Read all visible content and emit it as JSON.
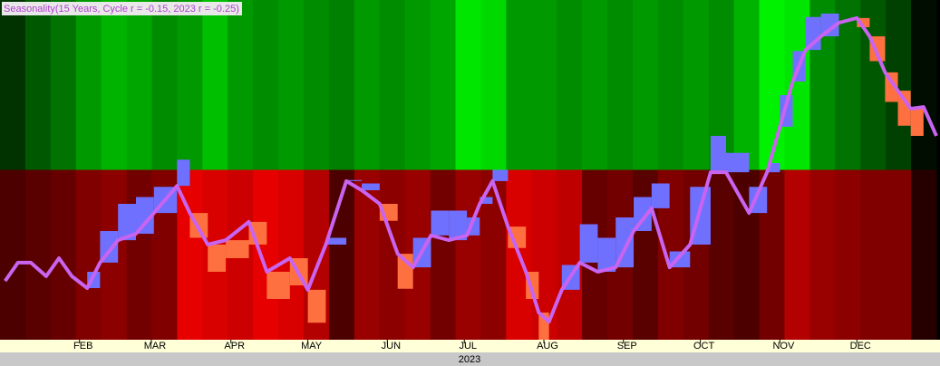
{
  "chart_data": {
    "type": "line",
    "title": "Seasonality(15 Years, Cycle r = -0.15, 2023 r = -0.25)",
    "xlabel": "2023",
    "xlim": [
      0,
      365
    ],
    "ylim": [
      0,
      100
    ],
    "xticks": [
      {
        "value": 31,
        "label": "FEB"
      },
      {
        "value": 59,
        "label": "MAR"
      },
      {
        "value": 90,
        "label": "APR"
      },
      {
        "value": 120,
        "label": "MAY"
      },
      {
        "value": 151,
        "label": "JUN"
      },
      {
        "value": 181,
        "label": "JUL"
      },
      {
        "value": 212,
        "label": "AUG"
      },
      {
        "value": 243,
        "label": "SEP"
      },
      {
        "value": 273,
        "label": "OCT"
      },
      {
        "value": 304,
        "label": "NOV"
      },
      {
        "value": 334,
        "label": "DEC"
      }
    ],
    "x": [
      2,
      7,
      12,
      18,
      23,
      28,
      34,
      39,
      46,
      53,
      60,
      69,
      74,
      81,
      88,
      97,
      104,
      113,
      120,
      127,
      135,
      141,
      148,
      155,
      161,
      168,
      175,
      182,
      187,
      192,
      198,
      205,
      210,
      214,
      219,
      226,
      233,
      240,
      247,
      254,
      261,
      269,
      277,
      283,
      292,
      299,
      304,
      309,
      314,
      320,
      327,
      334,
      339,
      345,
      350,
      355,
      360,
      365
    ],
    "series": [
      {
        "color": "#c864f0",
        "values": [
          17.3,
          22.7,
          22.7,
          18.7,
          24,
          18.7,
          15.2,
          22.7,
          29.3,
          31.2,
          37.3,
          45.3,
          37.3,
          28,
          29.3,
          34.7,
          20,
          24,
          14.7,
          28,
          46.7,
          44,
          40,
          25.3,
          21.3,
          30.7,
          29.3,
          30.7,
          40,
          46.7,
          33.3,
          20,
          8,
          5.3,
          14.7,
          22.7,
          20,
          21.3,
          32,
          38.7,
          21.3,
          28,
          49.3,
          49.3,
          37.3,
          49.3,
          62.7,
          76,
          85.3,
          89.3,
          93.3,
          94.7,
          89.3,
          78.7,
          73.3,
          68,
          68.5,
          60
        ]
      },
      {
        "values": [
          17.3,
          22.7,
          22.7,
          18.7,
          24,
          18.7,
          20,
          32,
          40,
          42,
          45,
          53,
          30,
          20,
          24,
          28,
          12,
          16,
          5,
          30,
          47,
          46,
          35,
          15,
          30,
          38,
          38,
          36,
          42,
          50,
          27,
          12,
          0,
          5.3,
          22,
          34,
          30,
          36,
          42,
          46,
          26,
          45,
          60,
          55,
          45,
          52,
          72,
          85,
          95,
          96,
          93.3,
          92,
          82,
          70,
          63,
          60,
          68.5,
          60
        ]
      }
    ],
    "above_color": "#7070ff",
    "below_color": "#ff7040",
    "heat_top": [
      0.2,
      0.35,
      0.45,
      0.6,
      0.7,
      0.65,
      0.55,
      0.6,
      0.75,
      0.6,
      0.55,
      0.6,
      0.55,
      0.5,
      0.6,
      0.55,
      0.6,
      0.65,
      0.9,
      0.85,
      0.6,
      0.6,
      0.55,
      0.6,
      0.55,
      0.6,
      0.55,
      0.6,
      0.55,
      0.7,
      0.95,
      0.9,
      0.55,
      0.45,
      0.35,
      0.25,
      0.05
    ],
    "heat_bottom": [
      0.3,
      0.35,
      0.4,
      0.5,
      0.55,
      0.45,
      0.5,
      0.9,
      0.85,
      0.8,
      0.9,
      0.85,
      0.7,
      0.3,
      0.6,
      0.55,
      0.6,
      0.45,
      0.6,
      0.55,
      0.85,
      0.8,
      0.75,
      0.4,
      0.45,
      0.35,
      0.5,
      0.45,
      0.35,
      0.3,
      0.45,
      0.7,
      0.6,
      0.55,
      0.5,
      0.5,
      0.15
    ]
  }
}
